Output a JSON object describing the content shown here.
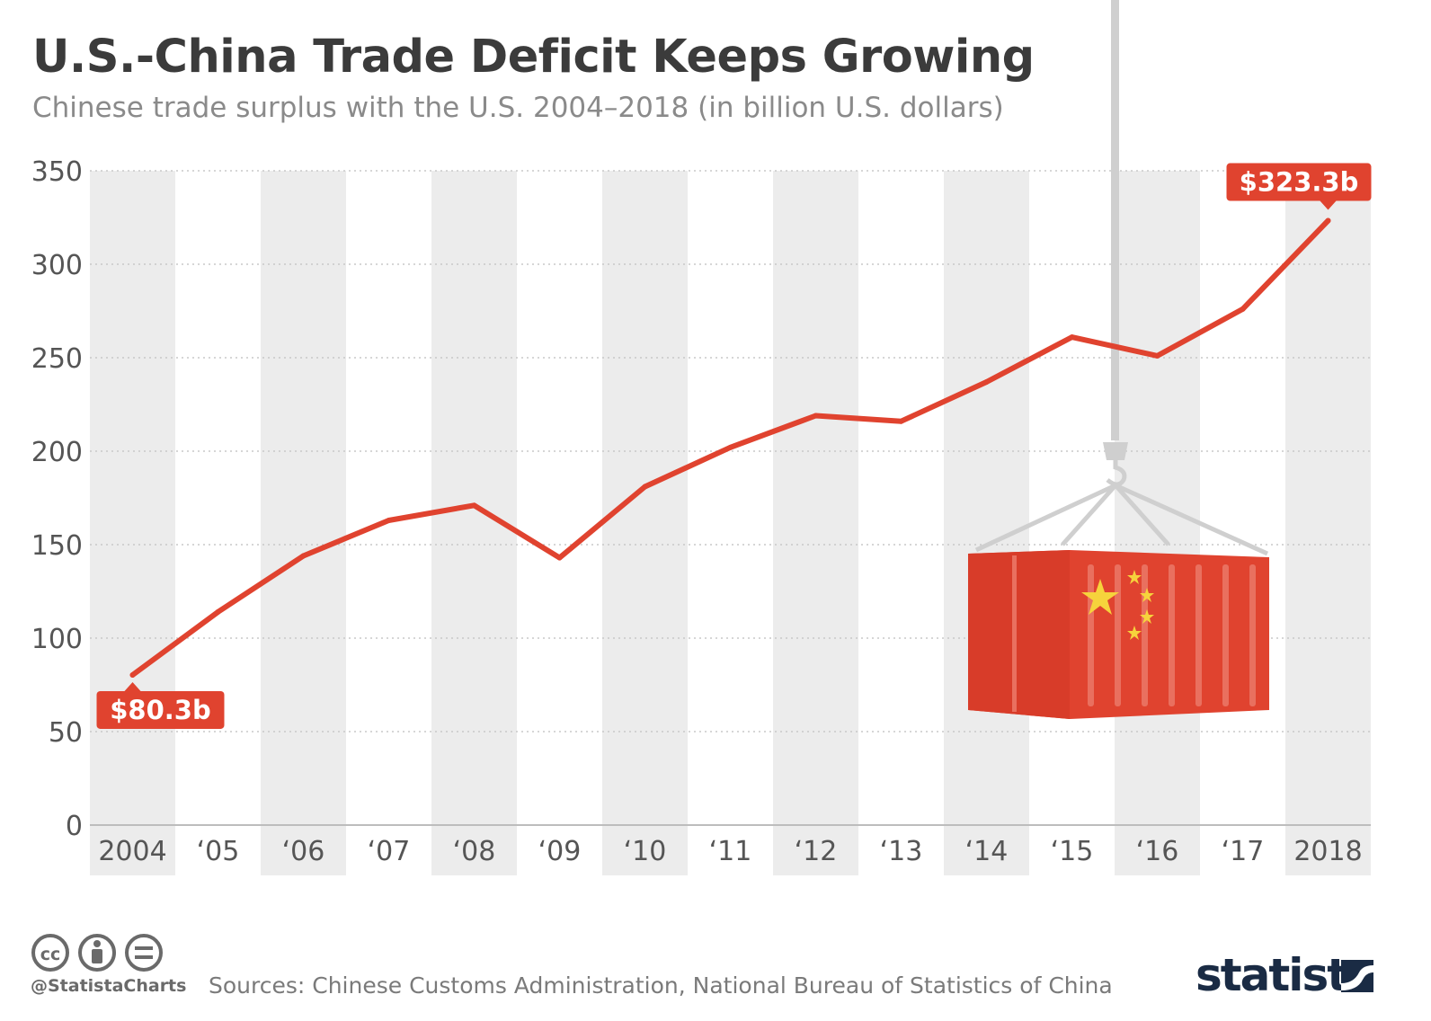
{
  "chart_data": {
    "type": "line",
    "title": "U.S.-China Trade Deficit Keeps Growing",
    "subtitle": "Chinese trade surplus with the U.S. 2004–2018 (in billion U.S. dollars)",
    "categories": [
      "2004",
      "‘05",
      "‘06",
      "‘07",
      "‘08",
      "‘09",
      "‘10",
      "‘11",
      "‘12",
      "‘13",
      "‘14",
      "‘15",
      "‘16",
      "‘17",
      "2018"
    ],
    "series": [
      {
        "values": [
          80.3,
          114,
          144,
          163,
          171,
          143,
          181,
          202,
          219,
          216,
          237,
          261,
          251,
          276,
          323.3
        ]
      }
    ],
    "ylim": [
      0,
      350
    ],
    "yticks": [
      0,
      50,
      100,
      150,
      200,
      250,
      300,
      350
    ],
    "grid": true,
    "annotations": [
      {
        "index": 0,
        "text": "$80.3b",
        "position": "below"
      },
      {
        "index": 14,
        "text": "$323.3b",
        "position": "above"
      }
    ],
    "colors": {
      "line": "#e0432f",
      "label_bg": "#e0432f",
      "band": "#ececec",
      "grid": "#c8c8c8",
      "illustration_red": "#e0432f",
      "illustration_star": "#f6d33c",
      "crane": "#cfcfcf"
    }
  },
  "footer": {
    "handle": "@StatistaCharts",
    "source": "Sources: Chinese Customs Administration, National Bureau of Statistics of China",
    "brand": "statista",
    "license_icons": [
      "cc-icon",
      "attribution-icon",
      "no-derivatives-icon"
    ]
  }
}
